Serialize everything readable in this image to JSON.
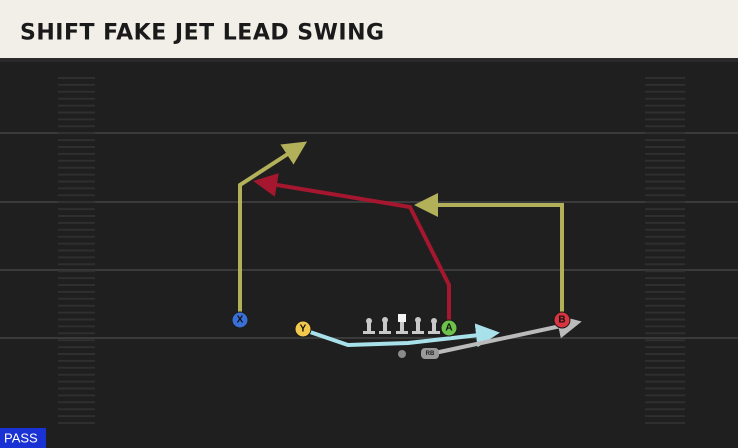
{
  "header": {
    "title": "SHIFT FAKE JET LEAD SWING"
  },
  "players": [
    {
      "label": "X"
    },
    {
      "label": "Y"
    },
    {
      "label": "A"
    },
    {
      "label": "B"
    },
    {
      "label": "RB"
    }
  ],
  "footer": {
    "badge": "PASS"
  }
}
